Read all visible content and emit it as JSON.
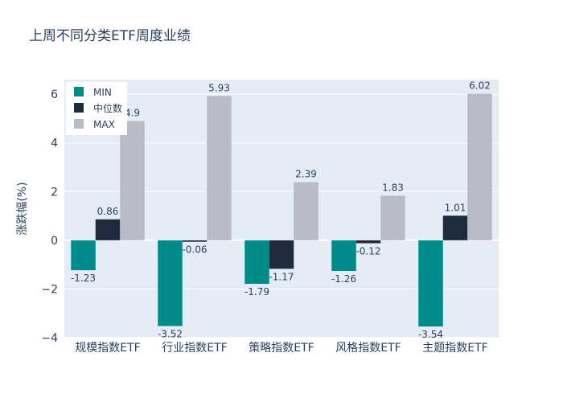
{
  "chart_data": {
    "type": "bar",
    "title": "上周不同分类ETF周度业绩",
    "xlabel": "",
    "ylabel": "涨跌幅(%)",
    "categories": [
      "规模指数ETF",
      "行业指数ETF",
      "策略指数ETF",
      "风格指数ETF",
      "主题指数ETF"
    ],
    "series": [
      {
        "name": "MIN",
        "values": [
          -1.23,
          -3.52,
          -1.79,
          -1.26,
          -3.54
        ],
        "labels": [
          "-1.23",
          "-3.52",
          "-1.79",
          "-1.26",
          "-3.54"
        ]
      },
      {
        "name": "中位数",
        "values": [
          0.86,
          -0.06,
          -1.17,
          -0.12,
          1.01
        ],
        "labels": [
          "0.86",
          "-0.06",
          "-1.17",
          "-0.12",
          "1.01"
        ]
      },
      {
        "name": "MAX",
        "values": [
          4.9,
          5.93,
          2.39,
          1.83,
          6.02
        ],
        "labels": [
          "4.9",
          "5.93",
          "2.39",
          "1.83",
          "6.02"
        ]
      }
    ],
    "ylim": [
      -4,
      6.6
    ],
    "yticks": [
      6,
      4,
      2,
      0,
      -2,
      -4
    ],
    "ytick_labels": [
      "6",
      "4",
      "2",
      "0",
      "−2",
      "−4"
    ],
    "legend_position": "top-left",
    "grid": true,
    "colors": {
      "MIN": "#008b8b",
      "中位数": "#1f2a3c",
      "MAX": "#b9bcc6",
      "plot_bg": "#e5ecf6",
      "grid": "#ffffff",
      "text": "#2a3f5f"
    }
  }
}
